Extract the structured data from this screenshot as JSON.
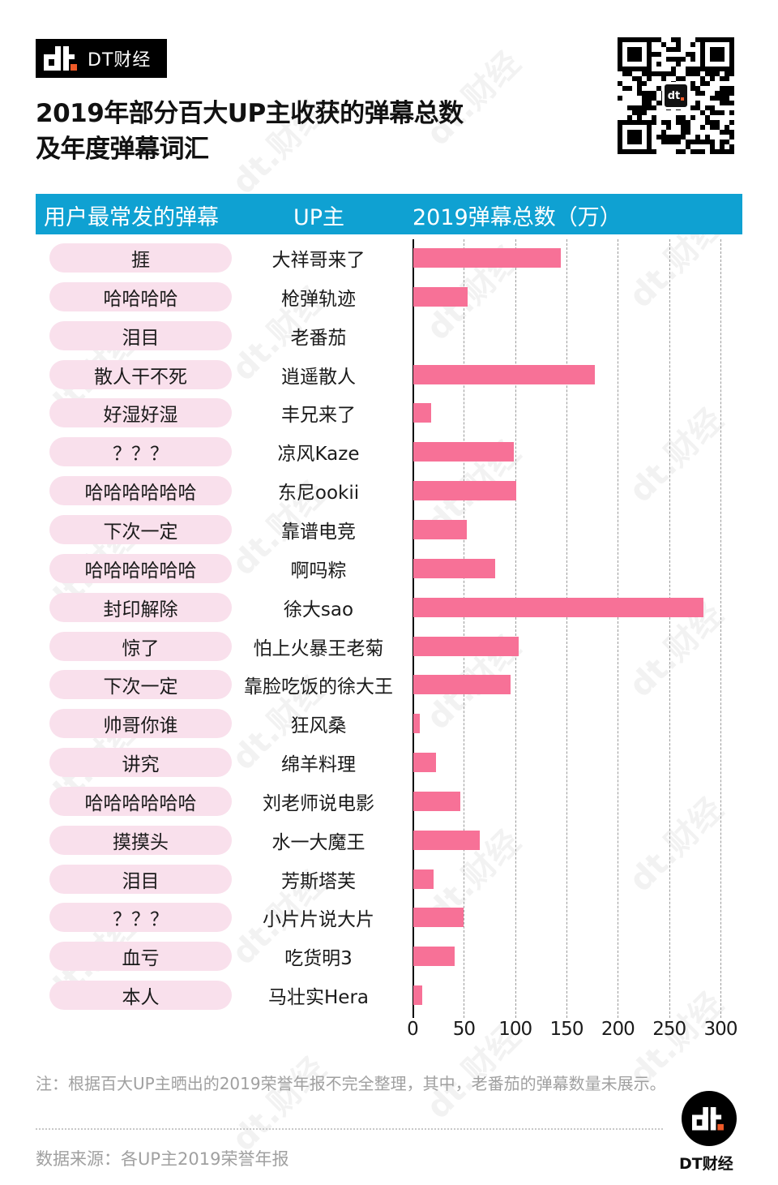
{
  "brand": {
    "name": "DT财经",
    "accent": "#f05a28"
  },
  "title_lines": [
    "2019年部分百大UP主收获的弹幕总数",
    "及年度弹幕词汇"
  ],
  "header": {
    "col1": "用户最常发的弹幕",
    "col2": "UP主",
    "col3": "2019弹幕总数（万）",
    "color": "#0fa1d2"
  },
  "rows": [
    {
      "danmu": "捱",
      "up": "大祥哥来了"
    },
    {
      "danmu": "哈哈哈哈",
      "up": "枪弹轨迹"
    },
    {
      "danmu": "泪目",
      "up": "老番茄"
    },
    {
      "danmu": "散人干不死",
      "up": "逍遥散人"
    },
    {
      "danmu": "好湿好湿",
      "up": "丰兄来了"
    },
    {
      "danmu": "？？？",
      "up": "凉风Kaze"
    },
    {
      "danmu": "哈哈哈哈哈哈",
      "up": "东尼ookii"
    },
    {
      "danmu": "下次一定",
      "up": "靠谱电竞"
    },
    {
      "danmu": "哈哈哈哈哈哈",
      "up": "啊吗粽"
    },
    {
      "danmu": "封印解除",
      "up": "徐大sao"
    },
    {
      "danmu": "惊了",
      "up": "怕上火暴王老菊"
    },
    {
      "danmu": "下次一定",
      "up": "靠脸吃饭的徐大王"
    },
    {
      "danmu": "帅哥你谁",
      "up": "狂风桑"
    },
    {
      "danmu": "讲究",
      "up": "绵羊料理"
    },
    {
      "danmu": "哈哈哈哈哈哈",
      "up": "刘老师说电影"
    },
    {
      "danmu": "摸摸头",
      "up": "水一大魔王"
    },
    {
      "danmu": "泪目",
      "up": "芳斯塔芙"
    },
    {
      "danmu": "？？？",
      "up": "小片片说大片"
    },
    {
      "danmu": "血亏",
      "up": "吃货明3"
    },
    {
      "danmu": "本人",
      "up": "马壮实Hera"
    }
  ],
  "chart_data": {
    "type": "bar",
    "orientation": "horizontal",
    "title": "2019年部分百大UP主收获的弹幕总数及年度弹幕词汇",
    "xlabel": "2019弹幕总数（万）",
    "ylabel": "UP主",
    "categories": [
      "大祥哥来了",
      "枪弹轨迹",
      "老番茄",
      "逍遥散人",
      "丰兄来了",
      "凉风Kaze",
      "东尼ookii",
      "靠谱电竞",
      "啊吗粽",
      "徐大sao",
      "怕上火暴王老菊",
      "靠脸吃饭的徐大王",
      "狂风桑",
      "绵羊料理",
      "刘老师说电影",
      "水一大魔王",
      "芳斯塔芙",
      "小片片说大片",
      "吃货明3",
      "马壮实Hera"
    ],
    "values": [
      144,
      53,
      null,
      177,
      17,
      98,
      100,
      52,
      80,
      283,
      103,
      95,
      6,
      22,
      46,
      65,
      20,
      49,
      40,
      9
    ],
    "annotations": [
      "捱",
      "哈哈哈哈",
      "泪目",
      "散人干不死",
      "好湿好湿",
      "？？？",
      "哈哈哈哈哈哈",
      "下次一定",
      "哈哈哈哈哈哈",
      "封印解除",
      "惊了",
      "下次一定",
      "帅哥你谁",
      "讲究",
      "哈哈哈哈哈哈",
      "摸摸头",
      "泪目",
      "？？？",
      "血亏",
      "本人"
    ],
    "xlim": [
      0,
      300
    ],
    "xticks": [
      "0",
      "50",
      "100",
      "150",
      "200",
      "250",
      "300"
    ],
    "grid": "vertical dashed",
    "bar_color": "#f77197",
    "legend": "none"
  },
  "notes": {
    "note": "注：根据百大UP主晒出的2019荣誉年报不完全整理，其中，老番茄的弹幕数量未展示。",
    "source": "数据来源：各UP主2019荣誉年报"
  },
  "footer": {
    "brand": "DT财经",
    "logo_text": "dt"
  },
  "watermark_text": "dt.财经"
}
